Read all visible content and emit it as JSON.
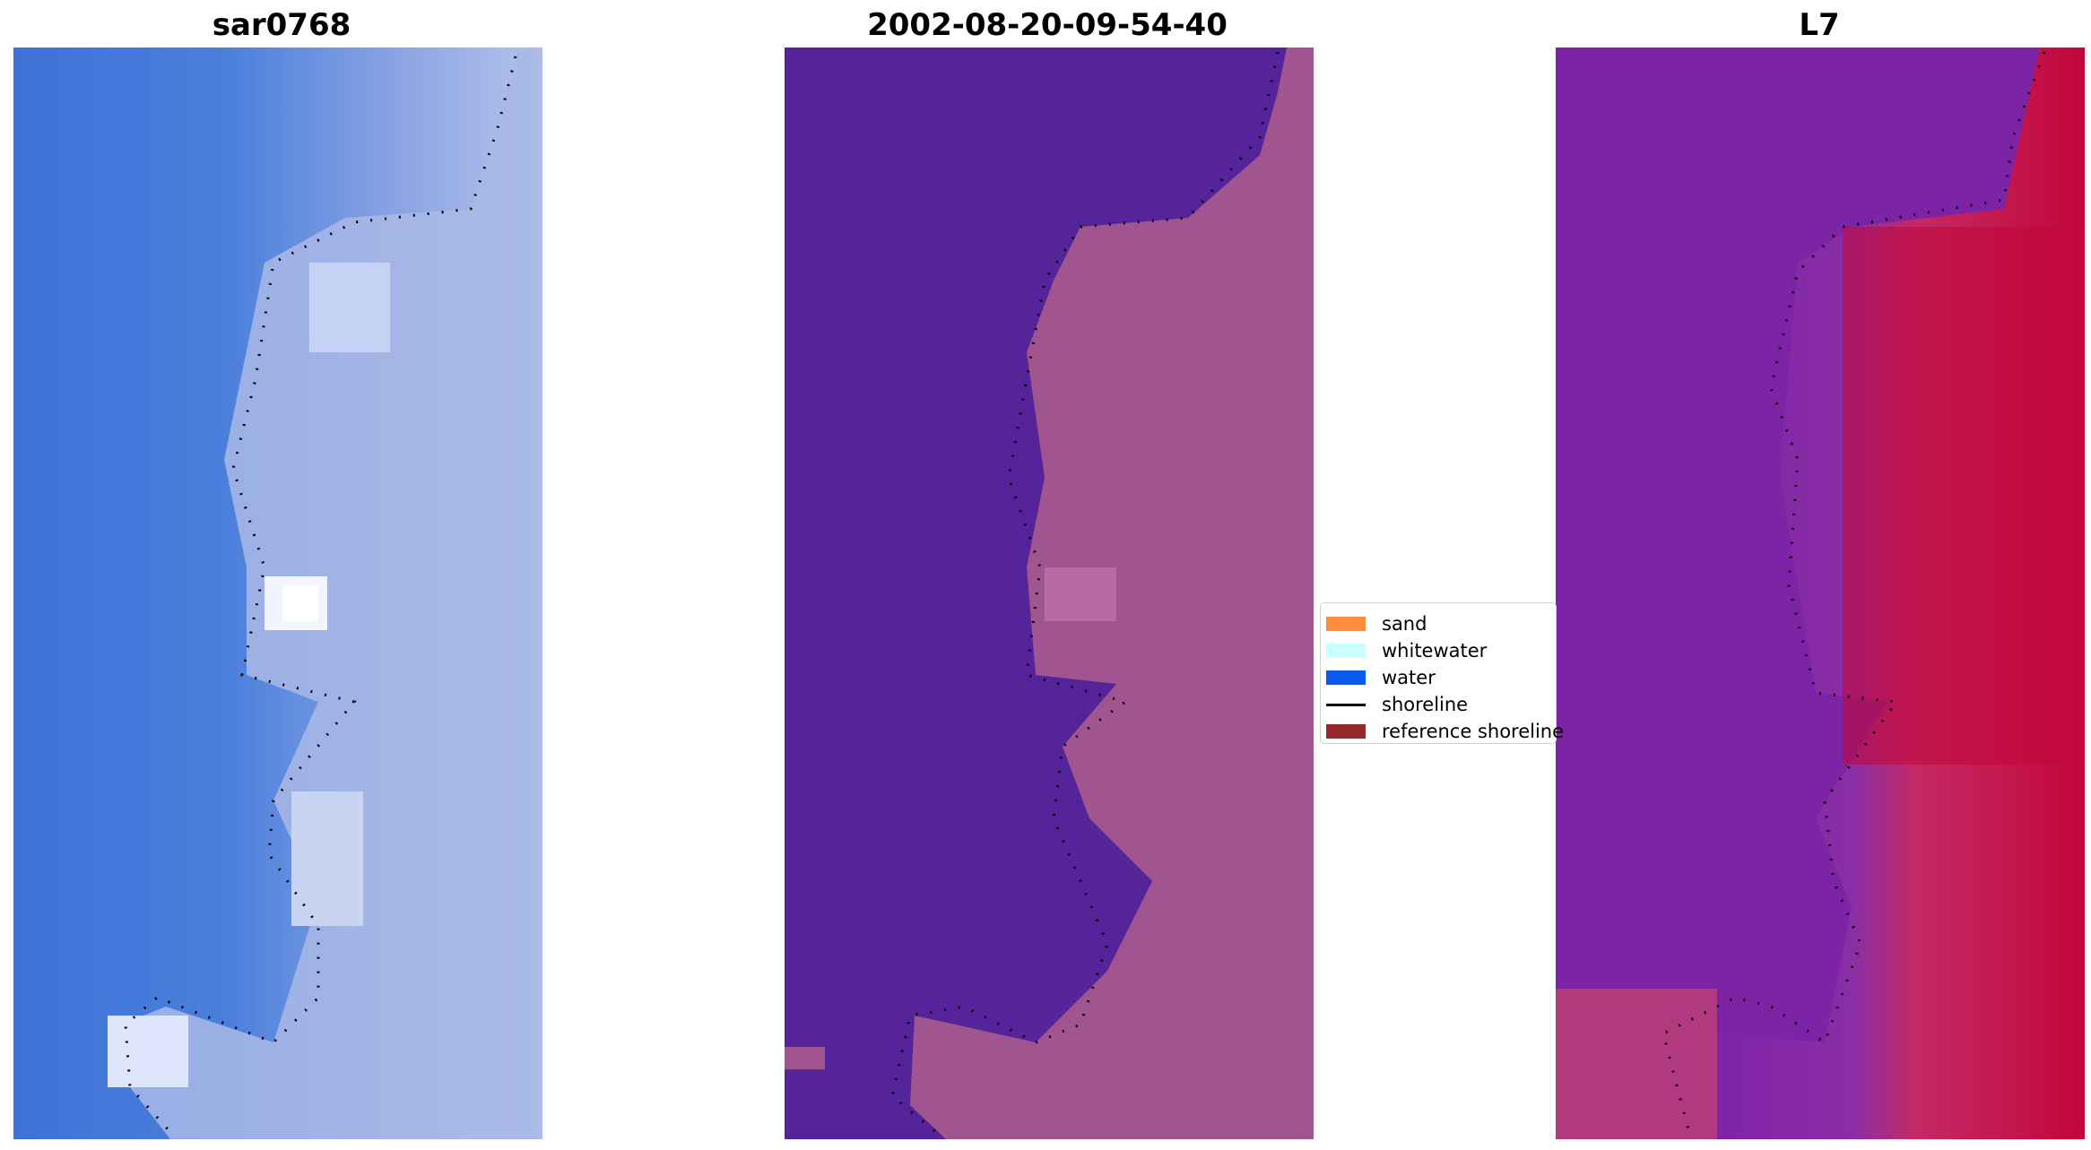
{
  "panels": [
    {
      "title": "sar0768"
    },
    {
      "title": "2002-08-20-09-54-40"
    },
    {
      "title": "L7"
    }
  ],
  "legend": {
    "items": [
      {
        "label": "sand",
        "color": "#ff8c3c",
        "kind": "patch"
      },
      {
        "label": "whitewater",
        "color": "#c8ffff",
        "kind": "patch"
      },
      {
        "label": "water",
        "color": "#0a5af0",
        "kind": "patch"
      },
      {
        "label": "shoreline",
        "color": "#000000",
        "kind": "line"
      },
      {
        "label": "reference shoreline",
        "color": "#96282d",
        "kind": "patch"
      }
    ]
  },
  "colors": {
    "rgb_water": "#3f78d8",
    "rgb_land": "#a8b8e8",
    "classified_water": "#55249a",
    "classified_land": "#a35a95",
    "mndwi_low": "#7a1fa8",
    "mndwi_high": "#c2063a"
  }
}
